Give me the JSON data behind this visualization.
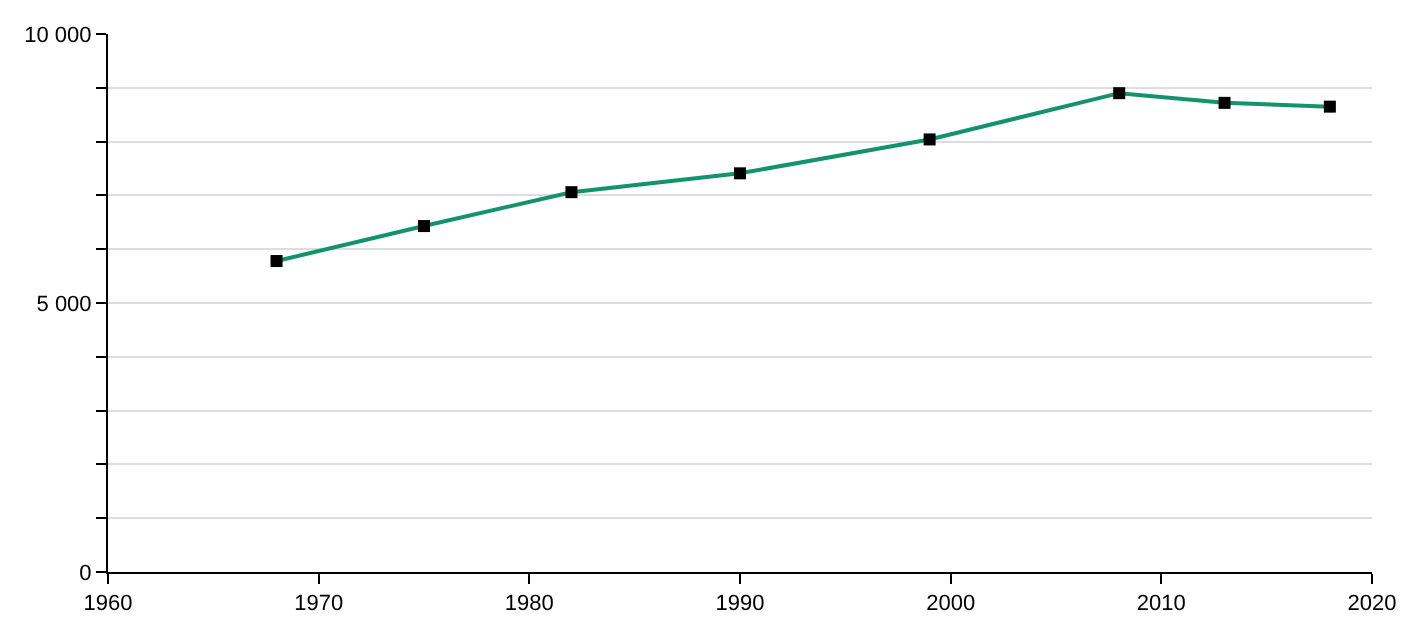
{
  "chart_data": {
    "type": "line",
    "x": [
      1968,
      1975,
      1982,
      1990,
      1999,
      2008,
      2013,
      2018
    ],
    "series": [
      {
        "color": "#13936b",
        "values": [
          5780,
          6430,
          7060,
          7410,
          8040,
          8900,
          8720,
          8650
        ]
      }
    ],
    "xlim": [
      1960,
      2020
    ],
    "xticks": [
      1960,
      1970,
      1980,
      1990,
      2000,
      2010,
      2020
    ],
    "ylim": [
      0,
      10000
    ],
    "yticks": [
      0,
      {
        "value": 1000,
        "label": null
      },
      {
        "value": 2000,
        "label": null
      },
      {
        "value": 3000,
        "label": null
      },
      {
        "value": 4000,
        "label": null
      },
      {
        "value": 5000,
        "label": "5 000"
      },
      {
        "value": 6000,
        "label": null
      },
      {
        "value": 7000,
        "label": null
      },
      {
        "value": 8000,
        "label": null
      },
      {
        "value": 9000,
        "label": null
      },
      {
        "value": 10000,
        "label": "10 000"
      }
    ],
    "grid": "y",
    "marker": "square",
    "line_style": "solid"
  }
}
